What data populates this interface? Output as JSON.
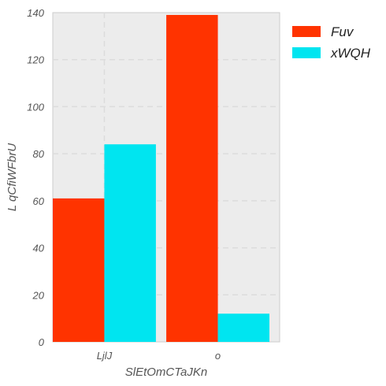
{
  "chart_data": {
    "type": "bar",
    "categories": [
      "LjlJ",
      "o"
    ],
    "series": [
      {
        "name": "Fuv",
        "values": [
          61,
          139
        ],
        "color": "#ff3300"
      },
      {
        "name": "xWQH",
        "values": [
          84,
          12
        ],
        "color": "#00e5f0"
      }
    ],
    "xlabel": "SlEtOmCTaJKn",
    "ylabel": "L qCfiWFbrU",
    "ylim": [
      0,
      140
    ],
    "yticks": [
      0,
      20,
      40,
      60,
      80,
      100,
      120,
      140
    ],
    "grid": true,
    "legend": "top-right",
    "colors": {
      "plot_bg": "#ececec",
      "grid": "#dcdcdc",
      "text": "#555555"
    }
  }
}
